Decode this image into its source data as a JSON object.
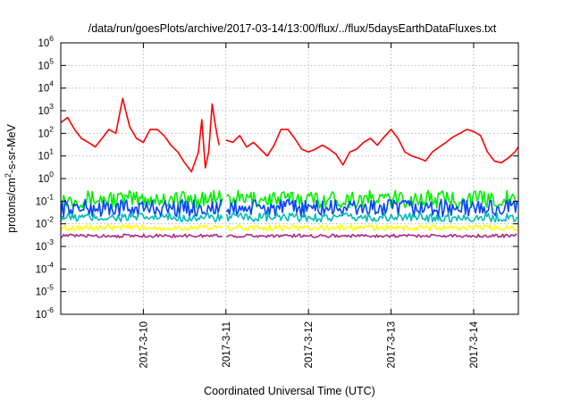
{
  "chart_data": {
    "type": "line",
    "title": "/data/run/goesPlots/archive/2017-03-14/13:00/flux/../flux/5daysEarthDataFluxes.txt",
    "xlabel": "Coordinated Universal Time (UTC)",
    "ylabel": "protons/cm²-s-sr-MeV",
    "yscale": "log",
    "ylim": [
      1e-06,
      1000000.0
    ],
    "xlim": [
      "2017-03-09 00:00",
      "2017-03-14 13:00"
    ],
    "grid": true,
    "x_ticks": [
      {
        "label": "2017-3-10",
        "date": "2017-03-10"
      },
      {
        "label": "2017-3-11",
        "date": "2017-03-11"
      },
      {
        "label": "2017-3-12",
        "date": "2017-03-12"
      },
      {
        "label": "2017-3-13",
        "date": "2017-03-13"
      },
      {
        "label": "2017-3-14",
        "date": "2017-03-14"
      }
    ],
    "y_ticks": [
      {
        "exp": -6,
        "label": "10",
        "sup": "-6"
      },
      {
        "exp": -5,
        "label": "10",
        "sup": "-5"
      },
      {
        "exp": -4,
        "label": "10",
        "sup": "-4"
      },
      {
        "exp": -3,
        "label": "10",
        "sup": "-3"
      },
      {
        "exp": -2,
        "label": "10",
        "sup": "-2"
      },
      {
        "exp": -1,
        "label": "10",
        "sup": "-1"
      },
      {
        "exp": 0,
        "label": "10",
        "sup": "0"
      },
      {
        "exp": 1,
        "label": "10",
        "sup": "1"
      },
      {
        "exp": 2,
        "label": "10",
        "sup": "2"
      },
      {
        "exp": 3,
        "label": "10",
        "sup": "3"
      },
      {
        "exp": 4,
        "label": "10",
        "sup": "4"
      },
      {
        "exp": 5,
        "label": "10",
        "sup": "5"
      },
      {
        "exp": 6,
        "label": "10",
        "sup": "6"
      }
    ],
    "data_gap": [
      "2017-03-10 23:00",
      "2017-03-11 00:00"
    ],
    "series": [
      {
        "color": "#ff0000",
        "points": [
          [
            "2017-03-09 00:00",
            300
          ],
          [
            "2017-03-09 02:00",
            500
          ],
          [
            "2017-03-09 04:00",
            150
          ],
          [
            "2017-03-09 06:00",
            60
          ],
          [
            "2017-03-09 08:00",
            40
          ],
          [
            "2017-03-09 10:00",
            25
          ],
          [
            "2017-03-09 12:00",
            60
          ],
          [
            "2017-03-09 14:00",
            150
          ],
          [
            "2017-03-09 16:00",
            100
          ],
          [
            "2017-03-09 18:00",
            3500
          ],
          [
            "2017-03-09 20:00",
            200
          ],
          [
            "2017-03-09 22:00",
            60
          ],
          [
            "2017-03-10 00:00",
            40
          ],
          [
            "2017-03-10 02:00",
            150
          ],
          [
            "2017-03-10 04:00",
            150
          ],
          [
            "2017-03-10 06:00",
            80
          ],
          [
            "2017-03-10 08:00",
            30
          ],
          [
            "2017-03-10 10:00",
            15
          ],
          [
            "2017-03-10 12:00",
            5
          ],
          [
            "2017-03-10 14:00",
            2
          ],
          [
            "2017-03-10 16:00",
            15
          ],
          [
            "2017-03-10 17:00",
            400
          ],
          [
            "2017-03-10 18:00",
            3
          ],
          [
            "2017-03-10 19:00",
            15
          ],
          [
            "2017-03-10 20:00",
            2000
          ],
          [
            "2017-03-10 21:00",
            200
          ],
          [
            "2017-03-10 22:00",
            30
          ],
          [
            "2017-03-11 00:00",
            50
          ],
          [
            "2017-03-11 02:00",
            40
          ],
          [
            "2017-03-11 04:00",
            80
          ],
          [
            "2017-03-11 06:00",
            25
          ],
          [
            "2017-03-11 08:00",
            40
          ],
          [
            "2017-03-11 10:00",
            20
          ],
          [
            "2017-03-11 12:00",
            10
          ],
          [
            "2017-03-11 14:00",
            30
          ],
          [
            "2017-03-11 16:00",
            150
          ],
          [
            "2017-03-11 18:00",
            150
          ],
          [
            "2017-03-11 20:00",
            60
          ],
          [
            "2017-03-11 22:00",
            20
          ],
          [
            "2017-03-12 00:00",
            15
          ],
          [
            "2017-03-12 02:00",
            20
          ],
          [
            "2017-03-12 04:00",
            30
          ],
          [
            "2017-03-12 06:00",
            20
          ],
          [
            "2017-03-12 08:00",
            12
          ],
          [
            "2017-03-12 10:00",
            4
          ],
          [
            "2017-03-12 12:00",
            15
          ],
          [
            "2017-03-12 14:00",
            20
          ],
          [
            "2017-03-12 16:00",
            40
          ],
          [
            "2017-03-12 18:00",
            60
          ],
          [
            "2017-03-12 20:00",
            30
          ],
          [
            "2017-03-12 22:00",
            70
          ],
          [
            "2017-03-13 00:00",
            150
          ],
          [
            "2017-03-13 02:00",
            60
          ],
          [
            "2017-03-13 04:00",
            15
          ],
          [
            "2017-03-13 06:00",
            10
          ],
          [
            "2017-03-13 08:00",
            8
          ],
          [
            "2017-03-13 10:00",
            6
          ],
          [
            "2017-03-13 12:00",
            15
          ],
          [
            "2017-03-13 14:00",
            25
          ],
          [
            "2017-03-13 16:00",
            40
          ],
          [
            "2017-03-13 18:00",
            70
          ],
          [
            "2017-03-13 20:00",
            100
          ],
          [
            "2017-03-13 22:00",
            150
          ],
          [
            "2017-03-14 00:00",
            120
          ],
          [
            "2017-03-14 02:00",
            80
          ],
          [
            "2017-03-14 04:00",
            15
          ],
          [
            "2017-03-14 06:00",
            6
          ],
          [
            "2017-03-14 08:00",
            5
          ],
          [
            "2017-03-14 10:00",
            8
          ],
          [
            "2017-03-14 12:00",
            15
          ],
          [
            "2017-03-14 13:00",
            25
          ]
        ]
      },
      {
        "color": "#00ee00",
        "noise_band": [
          0.05,
          0.3
        ]
      },
      {
        "color": "#0044ff",
        "noise_band": [
          0.02,
          0.12
        ]
      },
      {
        "color": "#00bbbb",
        "noise_band": [
          0.012,
          0.03
        ]
      },
      {
        "color": "#ffff00",
        "noise_band": [
          0.005,
          0.009
        ]
      },
      {
        "color": "#aa2a88",
        "noise_band": [
          0.0025,
          0.0035
        ]
      }
    ]
  }
}
